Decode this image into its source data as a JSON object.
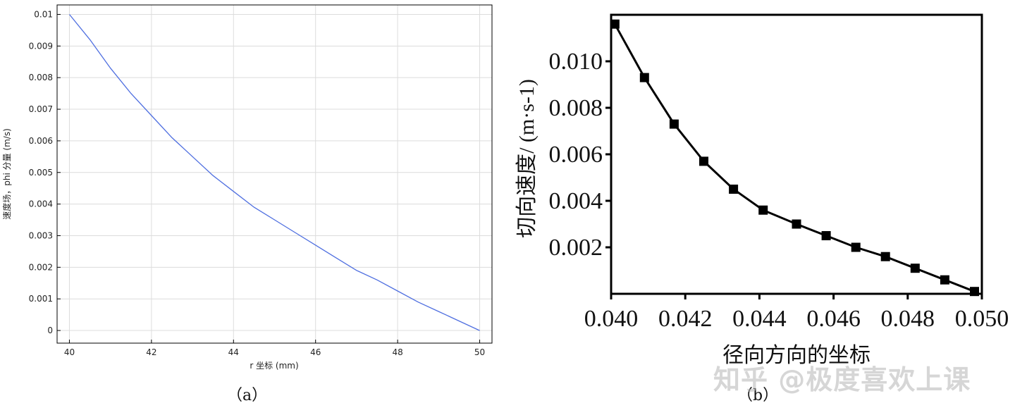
{
  "chart_data": [
    {
      "type": "line",
      "xlabel": "r 坐标 (mm)",
      "ylabel": "速度场，phi 分量 (m/s)",
      "xlim": [
        39.7,
        50.3
      ],
      "ylim": [
        -0.0004,
        0.0103
      ],
      "xticks": [
        "40",
        "42",
        "44",
        "46",
        "48",
        "50"
      ],
      "yticks": [
        "0",
        "0.001",
        "0.002",
        "0.003",
        "0.004",
        "0.005",
        "0.006",
        "0.007",
        "0.008",
        "0.009",
        "0.01"
      ],
      "grid": true,
      "color": "#4f6fe0",
      "x": [
        40,
        40.5,
        41,
        41.5,
        42,
        42.5,
        43,
        43.5,
        44,
        44.5,
        45,
        45.5,
        46,
        46.5,
        47,
        47.5,
        48,
        48.5,
        49,
        49.5,
        50
      ],
      "y": [
        0.01,
        0.0092,
        0.0083,
        0.0075,
        0.0068,
        0.0061,
        0.0055,
        0.0049,
        0.0044,
        0.0039,
        0.0035,
        0.0031,
        0.0027,
        0.0023,
        0.0019,
        0.0016,
        0.00125,
        0.0009,
        0.0006,
        0.0003,
        0.0
      ],
      "caption": "（a）"
    },
    {
      "type": "line",
      "xlabel": "径向方向的坐标",
      "ylabel": "切向速度/ (m·s-1)",
      "xlim": [
        0.04,
        0.05
      ],
      "ylim": [
        0.0,
        0.012
      ],
      "xticks": [
        "0.040",
        "0.042",
        "0.044",
        "0.046",
        "0.048",
        "0.050"
      ],
      "yticks": [
        "0.002",
        "0.004",
        "0.006",
        "0.008",
        "0.010"
      ],
      "grid": false,
      "color": "#000000",
      "marker": "square",
      "x": [
        0.0401,
        0.0409,
        0.0417,
        0.0425,
        0.0433,
        0.0441,
        0.045,
        0.0458,
        0.0466,
        0.0474,
        0.0482,
        0.049,
        0.0498
      ],
      "y": [
        0.0116,
        0.0093,
        0.0073,
        0.0057,
        0.0045,
        0.0036,
        0.003,
        0.0025,
        0.002,
        0.0016,
        0.0011,
        0.0006,
        0.0001
      ],
      "caption": "（b）"
    }
  ],
  "watermark": "知乎 @极度喜欢上课"
}
